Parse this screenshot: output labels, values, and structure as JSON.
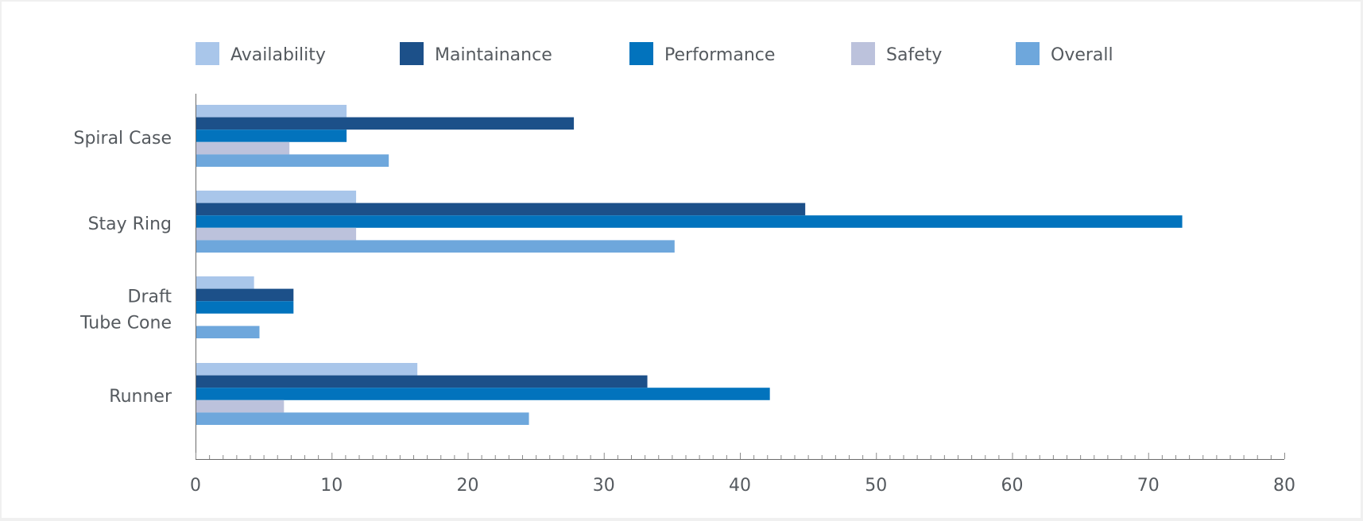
{
  "chart_data": {
    "type": "bar",
    "orientation": "horizontal",
    "categories": [
      "Spiral Case",
      "Stay Ring",
      "Draft Tube Cone",
      "Runner"
    ],
    "category_label_lines": [
      [
        "Spiral Case"
      ],
      [
        "Stay Ring"
      ],
      [
        "Draft",
        "Tube Cone"
      ],
      [
        "Runner"
      ]
    ],
    "series": [
      {
        "name": "Availability",
        "color": "#a9c6ea",
        "values": [
          11.1,
          11.8,
          4.3,
          16.3
        ]
      },
      {
        "name": "Maintainance",
        "color": "#1c5089",
        "values": [
          27.8,
          44.8,
          7.2,
          33.2
        ]
      },
      {
        "name": "Performance",
        "color": "#0273bd",
        "values": [
          11.1,
          72.5,
          7.2,
          42.2
        ]
      },
      {
        "name": "Safety",
        "color": "#bcc2dc",
        "values": [
          6.9,
          11.8,
          0,
          6.5
        ]
      },
      {
        "name": "Overall",
        "color": "#6ea7dc",
        "values": [
          14.2,
          35.2,
          4.7,
          24.5
        ]
      }
    ],
    "xlim": [
      0,
      80
    ],
    "xticks": [
      "0",
      "10",
      "20",
      "30",
      "40",
      "50",
      "60",
      "70",
      "80"
    ],
    "legend_position": "top",
    "grid": false,
    "title": "",
    "xlabel": "",
    "ylabel": ""
  }
}
